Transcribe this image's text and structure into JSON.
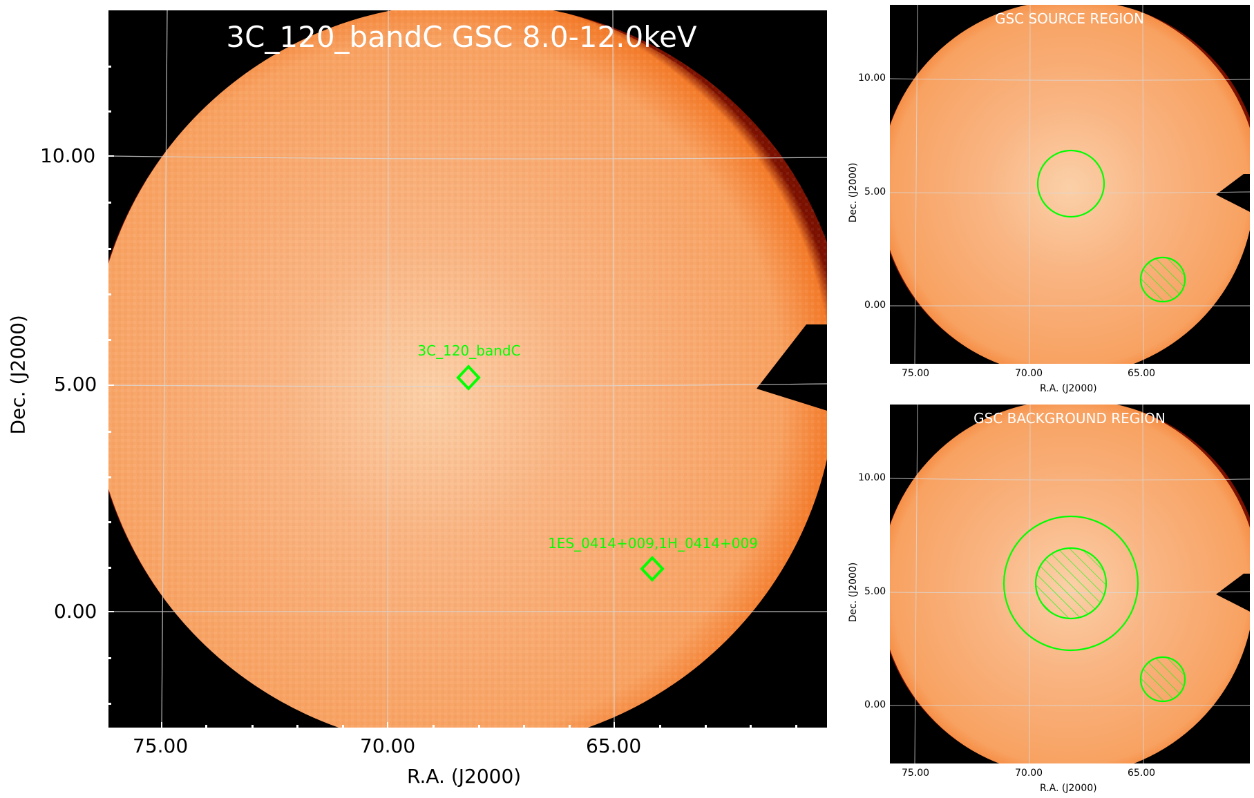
{
  "colors": {
    "image_center": "#fbd0a8",
    "image_mid": "#f9a46a",
    "image_edge": "#f37b2a",
    "rim": "#7a1000",
    "background": "#000000",
    "grid": "#d9d9d9",
    "region": "#00ff00",
    "title_text": "#ffffff"
  },
  "main_panel": {
    "title": "3C_120_bandC GSC 8.0-12.0keV",
    "xlabel": "R.A. (J2000)",
    "ylabel": "Dec. (J2000)",
    "x_ticks": [
      "75.00",
      "70.00",
      "65.00"
    ],
    "y_ticks": [
      "10.00",
      "5.00",
      "0.00"
    ],
    "sources": [
      {
        "name": "3C_120_bandC",
        "marker": "diamond"
      },
      {
        "name": "1ES_0414+009,1H_0414+009",
        "marker": "diamond"
      }
    ]
  },
  "source_panel": {
    "title": "GSC SOURCE REGION",
    "xlabel": "R.A. (J2000)",
    "ylabel": "Dec. (J2000)",
    "x_ticks": [
      "75.00",
      "70.00",
      "65.00"
    ],
    "y_ticks": [
      "10.00",
      "5.00",
      "0.00"
    ],
    "regions": [
      {
        "shape": "circle",
        "role": "source",
        "hatched": false
      },
      {
        "shape": "circle",
        "role": "excluded",
        "hatched": true
      }
    ]
  },
  "background_panel": {
    "title": "GSC BACKGROUND REGION",
    "xlabel": "R.A. (J2000)",
    "ylabel": "Dec. (J2000)",
    "x_ticks": [
      "75.00",
      "70.00",
      "65.00"
    ],
    "y_ticks": [
      "10.00",
      "5.00",
      "0.00"
    ],
    "regions": [
      {
        "shape": "circle",
        "role": "background-outer",
        "hatched": false
      },
      {
        "shape": "circle",
        "role": "excluded-source",
        "hatched": true
      },
      {
        "shape": "circle",
        "role": "excluded",
        "hatched": true
      }
    ]
  }
}
